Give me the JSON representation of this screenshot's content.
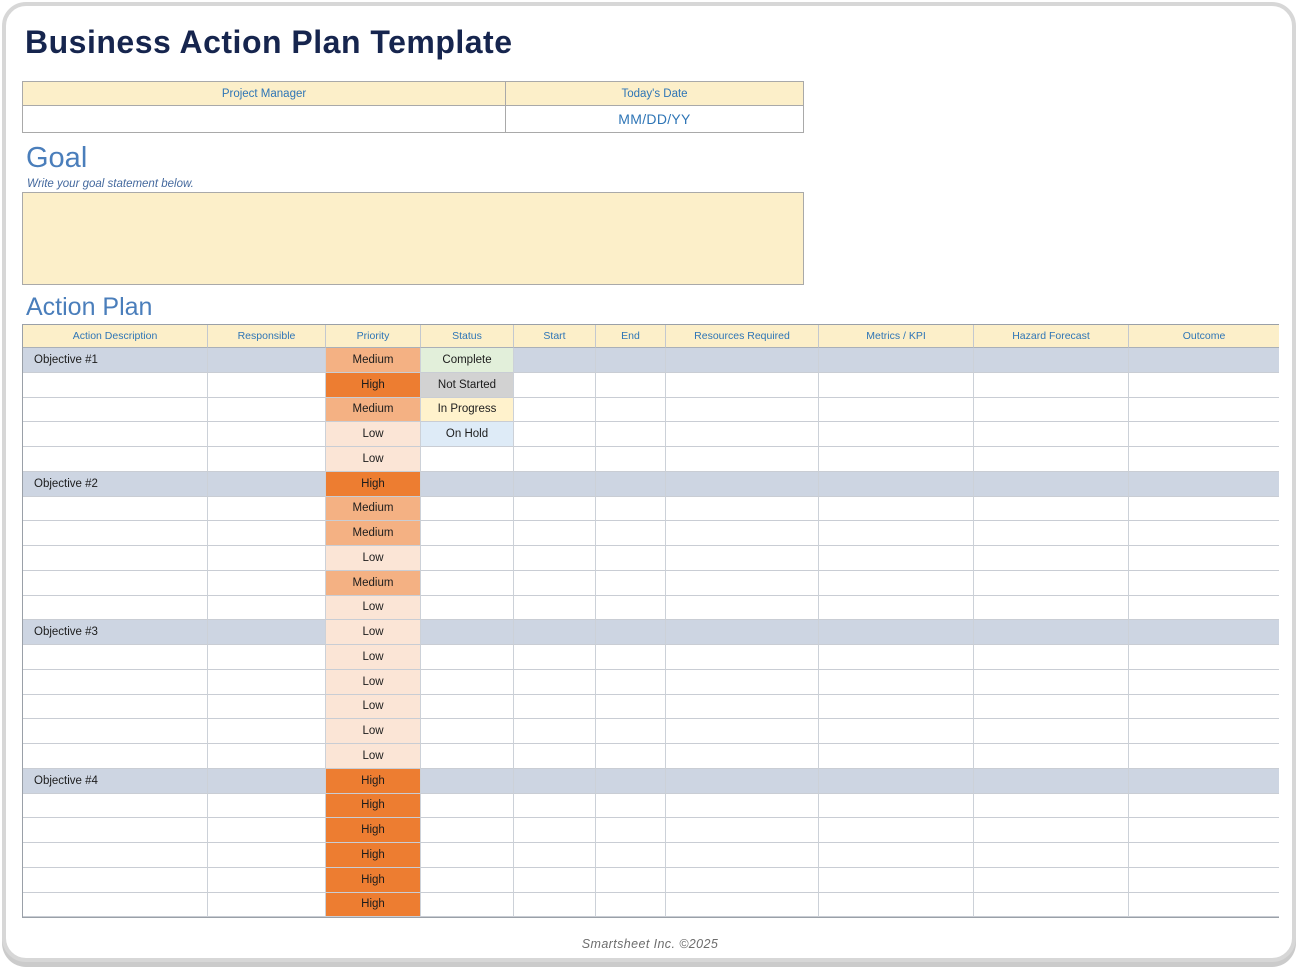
{
  "page": {
    "title": "Business Action Plan Template",
    "footer": "Smartsheet Inc. ©2025"
  },
  "info_table": {
    "headers": [
      "Project Manager",
      "Today's Date"
    ],
    "values": [
      "",
      "MM/DD/YY"
    ]
  },
  "goal": {
    "heading": "Goal",
    "hint": "Write your goal statement below.",
    "value": ""
  },
  "action_plan": {
    "heading": "Action Plan",
    "columns": [
      "Action Description",
      "Responsible",
      "Priority",
      "Status",
      "Start",
      "End",
      "Resources Required",
      "Metrics / KPI",
      "Hazard Forecast",
      "Outcome"
    ],
    "rows": [
      {
        "label": "Objective #1",
        "priority": "Medium",
        "status": "Complete"
      },
      {
        "priority": "High",
        "status": "Not Started"
      },
      {
        "priority": "Medium",
        "status": "In Progress"
      },
      {
        "priority": "Low",
        "status": "On Hold"
      },
      {
        "priority": "Low"
      },
      {
        "label": "Objective #2",
        "priority": "High"
      },
      {
        "priority": "Medium"
      },
      {
        "priority": "Medium"
      },
      {
        "priority": "Low"
      },
      {
        "priority": "Medium"
      },
      {
        "priority": "Low"
      },
      {
        "label": "Objective #3",
        "priority": "Low"
      },
      {
        "priority": "Low"
      },
      {
        "priority": "Low"
      },
      {
        "priority": "Low"
      },
      {
        "priority": "Low"
      },
      {
        "priority": "Low"
      },
      {
        "label": "Objective #4",
        "priority": "High"
      },
      {
        "priority": "High"
      },
      {
        "priority": "High"
      },
      {
        "priority": "High"
      },
      {
        "priority": "High"
      },
      {
        "priority": "High"
      }
    ]
  },
  "colors": {
    "priority": {
      "High": "#ED7D31",
      "Medium": "#F4B183",
      "Low": "#FBE5D6"
    },
    "status": {
      "Complete": "#E2EFDA",
      "Not Started": "#D2D2D2",
      "In Progress": "#FFF2CC",
      "On Hold": "#DEEBF7"
    },
    "band": "#CDD5E2",
    "header_bg": "#FCEFC9",
    "accent_blue": "#2E75B6",
    "heading_blue": "#4A7EBB",
    "title_navy": "#16254E"
  }
}
